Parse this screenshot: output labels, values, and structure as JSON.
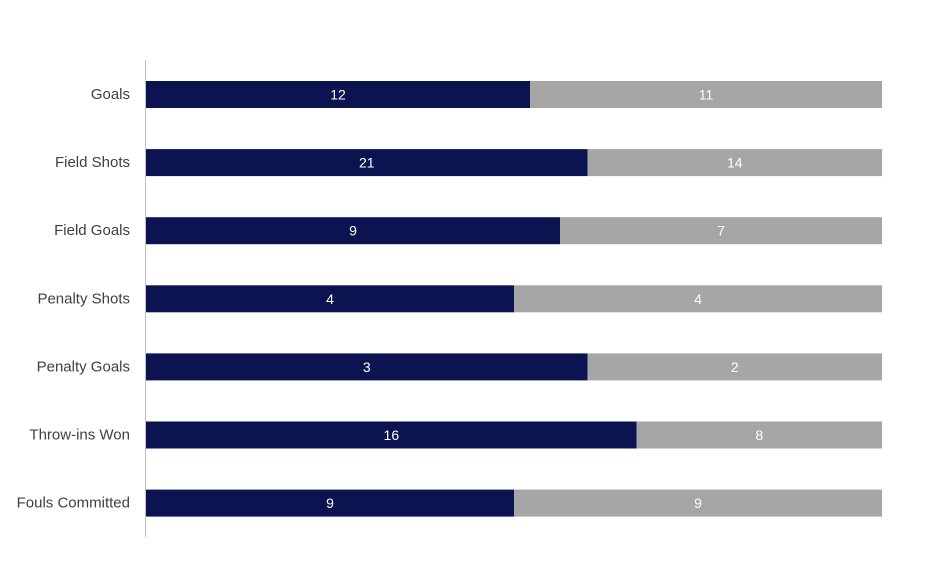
{
  "chart_data": {
    "type": "bar",
    "orientation": "horizontal",
    "stacking": "percent",
    "categories": [
      "Goals",
      "Field Shots",
      "Field Goals",
      "Penalty Shots",
      "Penalty Goals",
      "Throw-ins Won",
      "Fouls Committed"
    ],
    "series": [
      {
        "values": [
          12,
          21,
          9,
          4,
          3,
          16,
          9
        ],
        "color": "#0b1450"
      },
      {
        "values": [
          11,
          14,
          7,
          4,
          2,
          8,
          9
        ],
        "color": "#a6a6a6"
      }
    ],
    "title": "",
    "xlabel": "",
    "ylabel": "",
    "legend": "none",
    "grid": false,
    "axis_color": "#bfbfbf",
    "label_color": "#404040",
    "data_label_color": "#ffffff"
  }
}
